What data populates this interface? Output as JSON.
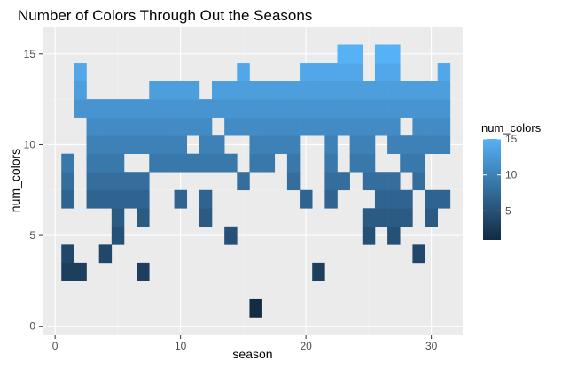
{
  "chart_data": {
    "type": "heatmap",
    "title": "Number of Colors Through Out the Seasons",
    "xlabel": "season",
    "ylabel": "num_colors",
    "xlim": [
      -1,
      32.5
    ],
    "ylim": [
      -0.5,
      16.5
    ],
    "x_ticks": [
      0,
      10,
      20,
      30
    ],
    "y_ticks": [
      0,
      5,
      10,
      15
    ],
    "grid": true,
    "legend": {
      "title": "num_colors",
      "position": "right",
      "range": [
        1,
        15
      ],
      "ticks": [
        5,
        10,
        15
      ]
    },
    "colors": {
      "low": "#132B43",
      "high": "#56B1F7",
      "panel": "#EBEBEB",
      "grid_major": "#FFFFFF",
      "grid_minor": "#F2F2F2"
    },
    "tiles": [
      [
        1,
        3
      ],
      [
        1,
        4
      ],
      [
        1,
        7
      ],
      [
        1,
        8
      ],
      [
        1,
        9
      ],
      [
        2,
        3
      ],
      [
        2,
        12
      ],
      [
        2,
        13
      ],
      [
        2,
        14
      ],
      [
        3,
        7
      ],
      [
        3,
        8
      ],
      [
        3,
        9
      ],
      [
        3,
        10
      ],
      [
        3,
        11
      ],
      [
        3,
        12
      ],
      [
        4,
        4
      ],
      [
        4,
        7
      ],
      [
        4,
        8
      ],
      [
        4,
        9
      ],
      [
        4,
        10
      ],
      [
        4,
        11
      ],
      [
        4,
        12
      ],
      [
        5,
        5
      ],
      [
        5,
        6
      ],
      [
        5,
        7
      ],
      [
        5,
        8
      ],
      [
        5,
        9
      ],
      [
        5,
        10
      ],
      [
        5,
        11
      ],
      [
        5,
        12
      ],
      [
        6,
        7
      ],
      [
        6,
        8
      ],
      [
        6,
        10
      ],
      [
        6,
        11
      ],
      [
        6,
        12
      ],
      [
        7,
        3
      ],
      [
        7,
        6
      ],
      [
        7,
        7
      ],
      [
        7,
        8
      ],
      [
        7,
        10
      ],
      [
        7,
        11
      ],
      [
        7,
        12
      ],
      [
        8,
        9
      ],
      [
        8,
        10
      ],
      [
        8,
        11
      ],
      [
        8,
        12
      ],
      [
        8,
        13
      ],
      [
        9,
        9
      ],
      [
        9,
        10
      ],
      [
        9,
        11
      ],
      [
        9,
        12
      ],
      [
        9,
        13
      ],
      [
        10,
        7
      ],
      [
        10,
        9
      ],
      [
        10,
        10
      ],
      [
        10,
        11
      ],
      [
        10,
        12
      ],
      [
        10,
        13
      ],
      [
        11,
        9
      ],
      [
        11,
        11
      ],
      [
        11,
        12
      ],
      [
        11,
        13
      ],
      [
        12,
        6
      ],
      [
        12,
        7
      ],
      [
        12,
        9
      ],
      [
        12,
        10
      ],
      [
        12,
        11
      ],
      [
        12,
        12
      ],
      [
        13,
        9
      ],
      [
        13,
        10
      ],
      [
        13,
        12
      ],
      [
        13,
        13
      ],
      [
        14,
        5
      ],
      [
        14,
        9
      ],
      [
        14,
        11
      ],
      [
        14,
        12
      ],
      [
        14,
        13
      ],
      [
        15,
        8
      ],
      [
        15,
        11
      ],
      [
        15,
        12
      ],
      [
        15,
        13
      ],
      [
        15,
        14
      ],
      [
        16,
        1
      ],
      [
        16,
        9
      ],
      [
        16,
        10
      ],
      [
        16,
        11
      ],
      [
        16,
        12
      ],
      [
        16,
        13
      ],
      [
        17,
        9
      ],
      [
        17,
        10
      ],
      [
        17,
        11
      ],
      [
        17,
        12
      ],
      [
        17,
        13
      ],
      [
        18,
        10
      ],
      [
        18,
        11
      ],
      [
        18,
        12
      ],
      [
        18,
        13
      ],
      [
        19,
        8
      ],
      [
        19,
        9
      ],
      [
        19,
        10
      ],
      [
        19,
        11
      ],
      [
        19,
        12
      ],
      [
        19,
        13
      ],
      [
        20,
        7
      ],
      [
        20,
        11
      ],
      [
        20,
        12
      ],
      [
        20,
        13
      ],
      [
        20,
        14
      ],
      [
        21,
        3
      ],
      [
        21,
        11
      ],
      [
        21,
        12
      ],
      [
        21,
        13
      ],
      [
        21,
        14
      ],
      [
        22,
        7
      ],
      [
        22,
        8
      ],
      [
        22,
        9
      ],
      [
        22,
        10
      ],
      [
        22,
        11
      ],
      [
        22,
        12
      ],
      [
        22,
        13
      ],
      [
        22,
        14
      ],
      [
        23,
        8
      ],
      [
        23,
        11
      ],
      [
        23,
        12
      ],
      [
        23,
        13
      ],
      [
        23,
        14
      ],
      [
        23,
        15
      ],
      [
        24,
        9
      ],
      [
        24,
        10
      ],
      [
        24,
        11
      ],
      [
        24,
        12
      ],
      [
        24,
        13
      ],
      [
        24,
        14
      ],
      [
        24,
        15
      ],
      [
        25,
        5
      ],
      [
        25,
        6
      ],
      [
        25,
        8
      ],
      [
        25,
        9
      ],
      [
        25,
        10
      ],
      [
        25,
        11
      ],
      [
        25,
        12
      ],
      [
        25,
        13
      ],
      [
        26,
        6
      ],
      [
        26,
        7
      ],
      [
        26,
        8
      ],
      [
        26,
        11
      ],
      [
        26,
        12
      ],
      [
        26,
        13
      ],
      [
        26,
        14
      ],
      [
        26,
        15
      ],
      [
        27,
        5
      ],
      [
        27,
        6
      ],
      [
        27,
        7
      ],
      [
        27,
        8
      ],
      [
        27,
        10
      ],
      [
        27,
        11
      ],
      [
        27,
        12
      ],
      [
        27,
        13
      ],
      [
        27,
        14
      ],
      [
        27,
        15
      ],
      [
        28,
        6
      ],
      [
        28,
        7
      ],
      [
        28,
        9
      ],
      [
        28,
        10
      ],
      [
        28,
        12
      ],
      [
        28,
        13
      ],
      [
        29,
        4
      ],
      [
        29,
        8
      ],
      [
        29,
        9
      ],
      [
        29,
        10
      ],
      [
        29,
        11
      ],
      [
        29,
        12
      ],
      [
        29,
        13
      ],
      [
        30,
        6
      ],
      [
        30,
        7
      ],
      [
        30,
        10
      ],
      [
        30,
        11
      ],
      [
        30,
        12
      ],
      [
        30,
        13
      ],
      [
        31,
        7
      ],
      [
        31,
        10
      ],
      [
        31,
        11
      ],
      [
        31,
        12
      ],
      [
        31,
        13
      ],
      [
        31,
        14
      ]
    ]
  }
}
